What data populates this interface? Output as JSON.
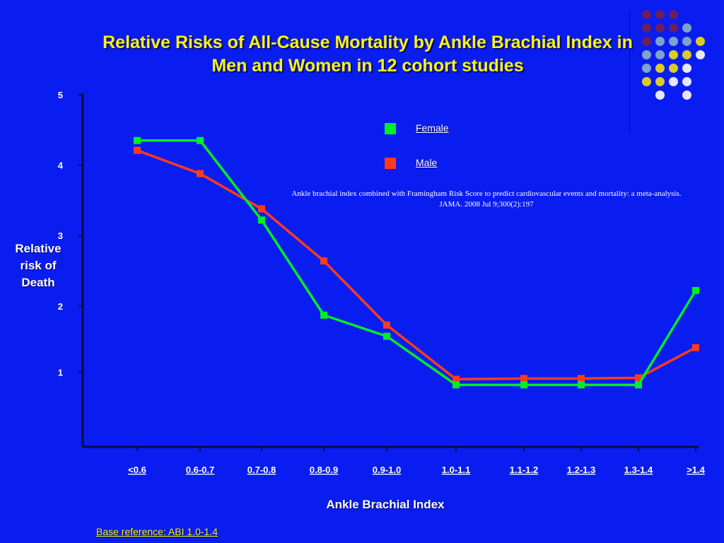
{
  "slide": {
    "title_line1": "Relative Risks of All-Cause Mortality by Ankle Brachial Index in",
    "title_line2": "Men and Women in 12 cohort studies",
    "citation_line1": "Ankle brachial index combined with Framingham Risk Score to predict cardiovascular events and mortality: a meta-analysis.",
    "citation_line2": "JAMA. 2008 Jul 9;300(2):197",
    "footnote": "Base reference: ABI 1.0-1.4",
    "decor_colors": [
      "#6b1f5c",
      "#7fa3c9",
      "#d9cc2a",
      "#e6e6f5"
    ]
  },
  "chart_data": {
    "type": "line",
    "title": "Relative Risks of All-Cause Mortality by Ankle Brachial Index in Men and Women in 12 cohort studies",
    "xlabel": "Ankle Brachial Index",
    "ylabel_lines": [
      "Relative",
      "risk of",
      "Death"
    ],
    "categories": [
      "<0.6",
      "0.6-0.7",
      "0.7-0.8",
      "0.8-0.9",
      "0.9-1.0",
      "1.0-1.1",
      "1.1-1.2",
      "1.2-1.3",
      "1.3-1.4",
      ">1.4"
    ],
    "y_ticks": [
      1,
      2,
      3,
      4,
      5
    ],
    "ylim": [
      0,
      5
    ],
    "grid": false,
    "legend_position": "top-right",
    "series": [
      {
        "name": "Female",
        "color": "#00ee22",
        "values": [
          4.35,
          4.35,
          3.22,
          1.87,
          1.57,
          0.88,
          0.88,
          0.88,
          0.88,
          2.22
        ]
      },
      {
        "name": "Male",
        "color": "#ff3b1a",
        "values": [
          4.21,
          3.88,
          3.38,
          2.64,
          1.73,
          0.96,
          0.97,
          0.97,
          0.98,
          1.41
        ]
      }
    ]
  }
}
